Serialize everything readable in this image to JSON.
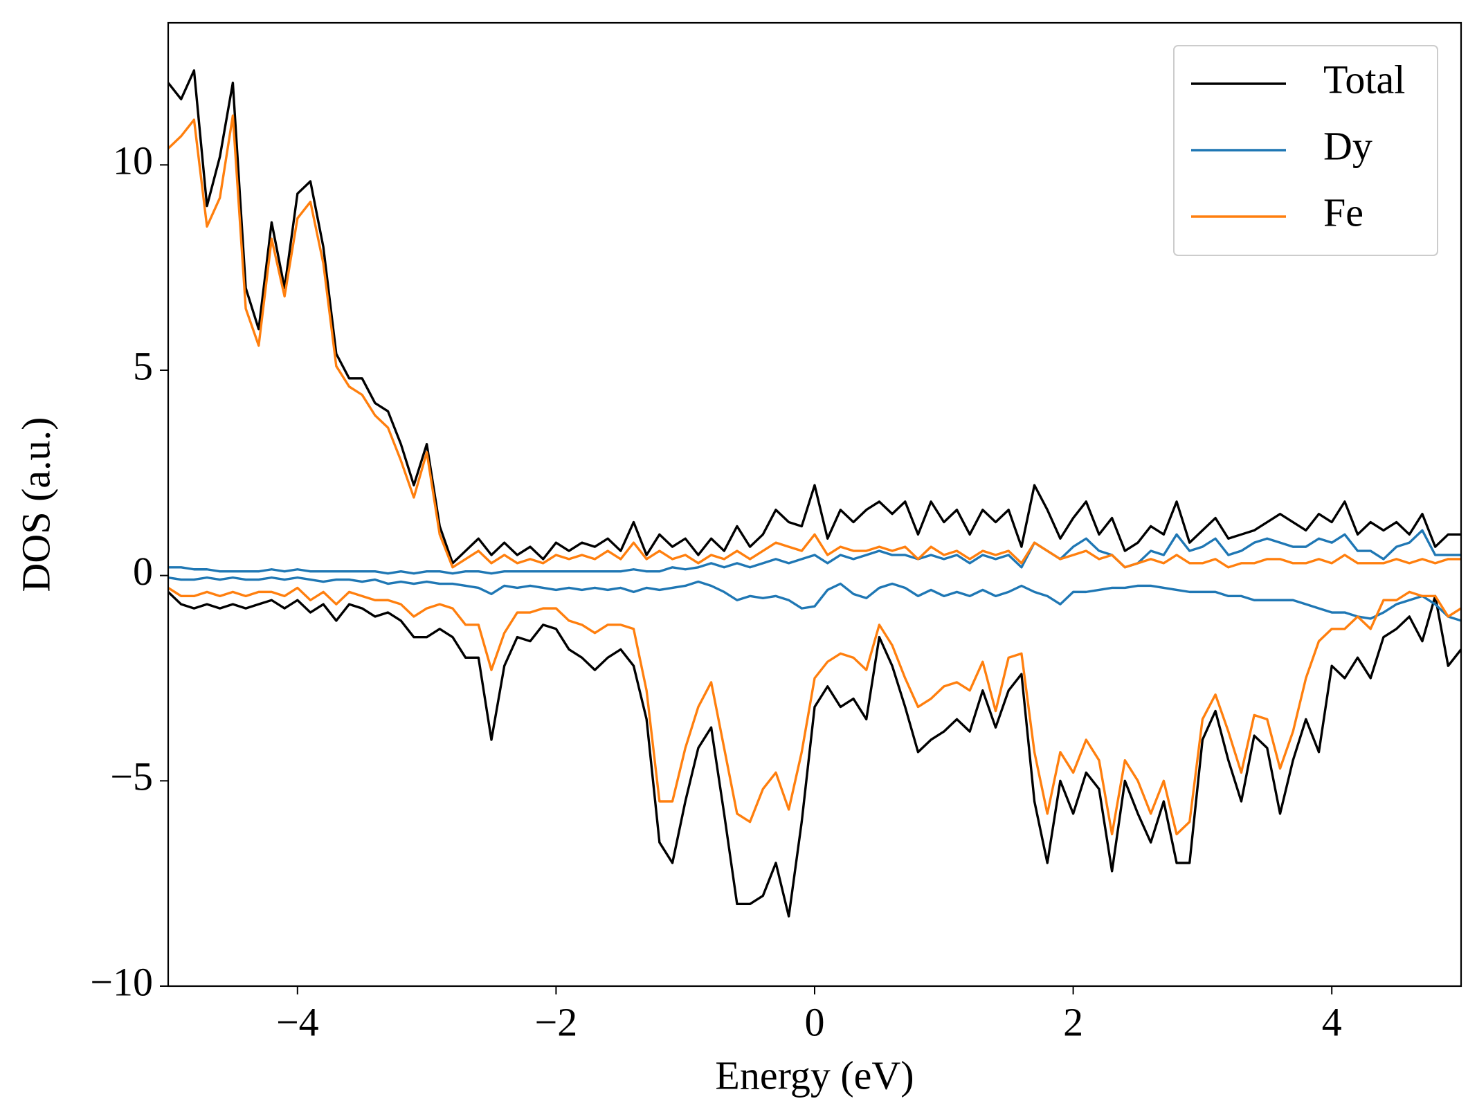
{
  "chart_data": {
    "type": "line",
    "xlabel": "Energy (eV)",
    "ylabel": "DOS (a.u.)",
    "xlim": [
      -5,
      5
    ],
    "ylim": [
      -10,
      13.46
    ],
    "xticks": [
      {
        "value": -4,
        "label": "−4"
      },
      {
        "value": -2,
        "label": "−2"
      },
      0,
      2,
      4
    ],
    "yticks": [
      {
        "value": -10,
        "label": "−10"
      },
      {
        "value": -5,
        "label": "−5"
      },
      0,
      5,
      10
    ],
    "legend": "upper right",
    "x": [
      -5.0,
      -4.9,
      -4.8,
      -4.7,
      -4.6,
      -4.5,
      -4.4,
      -4.3,
      -4.2,
      -4.1,
      -4.0,
      -3.9,
      -3.8,
      -3.7,
      -3.6,
      -3.5,
      -3.4,
      -3.3,
      -3.2,
      -3.1,
      -3.0,
      -2.9,
      -2.8,
      -2.7,
      -2.6,
      -2.5,
      -2.4,
      -2.3,
      -2.2,
      -2.1,
      -2.0,
      -1.9,
      -1.8,
      -1.7,
      -1.6,
      -1.5,
      -1.4,
      -1.3,
      -1.2,
      -1.1,
      -1.0,
      -0.9,
      -0.8,
      -0.7,
      -0.6,
      -0.5,
      -0.4,
      -0.3,
      -0.2,
      -0.1,
      0.0,
      0.1,
      0.2,
      0.3,
      0.4,
      0.5,
      0.6,
      0.7,
      0.8,
      0.9,
      1.0,
      1.1,
      1.2,
      1.3,
      1.4,
      1.5,
      1.6,
      1.7,
      1.8,
      1.9,
      2.0,
      2.1,
      2.2,
      2.3,
      2.4,
      2.5,
      2.6,
      2.7,
      2.8,
      2.9,
      3.0,
      3.1,
      3.2,
      3.3,
      3.4,
      3.5,
      3.6,
      3.7,
      3.8,
      3.9,
      4.0,
      4.1,
      4.2,
      4.3,
      4.4,
      4.5,
      4.6,
      4.7,
      4.8,
      4.9,
      5.0
    ],
    "series": [
      {
        "name": "Total",
        "color": "#000000",
        "values": [
          12.0,
          11.6,
          12.3,
          9.0,
          10.2,
          12.0,
          7.0,
          6.0,
          8.6,
          7.0,
          9.3,
          9.6,
          8.0,
          5.4,
          4.8,
          4.8,
          4.2,
          4.0,
          3.2,
          2.2,
          3.2,
          1.2,
          0.3,
          0.6,
          0.9,
          0.5,
          0.8,
          0.5,
          0.7,
          0.4,
          0.8,
          0.6,
          0.8,
          0.7,
          0.9,
          0.6,
          1.3,
          0.5,
          1.0,
          0.7,
          0.9,
          0.5,
          0.9,
          0.6,
          1.2,
          0.7,
          1.0,
          1.6,
          1.3,
          1.2,
          2.2,
          0.9,
          1.6,
          1.3,
          1.6,
          1.8,
          1.5,
          1.8,
          1.0,
          1.8,
          1.3,
          1.6,
          1.0,
          1.6,
          1.3,
          1.6,
          0.7,
          2.2,
          1.6,
          0.9,
          1.4,
          1.8,
          1.0,
          1.4,
          0.6,
          0.8,
          1.2,
          1.0,
          1.8,
          0.8,
          1.1,
          1.4,
          0.9,
          1.0,
          1.1,
          1.3,
          1.5,
          1.3,
          1.1,
          1.5,
          1.3,
          1.8,
          1.0,
          1.3,
          1.1,
          1.3,
          1.0,
          1.5,
          0.7,
          1.0,
          1.0
        ],
        "values_down": [
          -0.4,
          -0.7,
          -0.8,
          -0.7,
          -0.8,
          -0.7,
          -0.8,
          -0.7,
          -0.6,
          -0.8,
          -0.6,
          -0.9,
          -0.7,
          -1.1,
          -0.7,
          -0.8,
          -1.0,
          -0.9,
          -1.1,
          -1.5,
          -1.5,
          -1.3,
          -1.5,
          -2.0,
          -2.0,
          -4.0,
          -2.2,
          -1.5,
          -1.6,
          -1.2,
          -1.3,
          -1.8,
          -2.0,
          -2.3,
          -2.0,
          -1.8,
          -2.2,
          -3.5,
          -6.5,
          -7.0,
          -5.5,
          -4.2,
          -3.7,
          -5.8,
          -8.0,
          -8.0,
          -7.8,
          -7.0,
          -8.3,
          -6.0,
          -3.2,
          -2.7,
          -3.2,
          -3.0,
          -3.5,
          -1.5,
          -2.2,
          -3.2,
          -4.3,
          -4.0,
          -3.8,
          -3.5,
          -3.8,
          -2.8,
          -3.7,
          -2.8,
          -2.4,
          -5.5,
          -7.0,
          -5.0,
          -5.8,
          -4.8,
          -5.2,
          -7.2,
          -5.0,
          -5.8,
          -6.5,
          -5.5,
          -7.0,
          -7.0,
          -4.0,
          -3.3,
          -4.5,
          -5.5,
          -3.9,
          -4.2,
          -5.8,
          -4.5,
          -3.5,
          -4.3,
          -2.2,
          -2.5,
          -2.0,
          -2.5,
          -1.5,
          -1.3,
          -1.0,
          -1.6,
          -0.5,
          -2.2,
          -1.8
        ]
      },
      {
        "name": "Dy",
        "color": "#1f77b4",
        "values": [
          0.2,
          0.2,
          0.15,
          0.15,
          0.1,
          0.1,
          0.1,
          0.1,
          0.15,
          0.1,
          0.15,
          0.1,
          0.1,
          0.1,
          0.1,
          0.1,
          0.1,
          0.05,
          0.1,
          0.05,
          0.1,
          0.1,
          0.05,
          0.1,
          0.1,
          0.05,
          0.1,
          0.1,
          0.1,
          0.1,
          0.1,
          0.1,
          0.1,
          0.1,
          0.1,
          0.1,
          0.15,
          0.1,
          0.1,
          0.2,
          0.15,
          0.2,
          0.3,
          0.2,
          0.3,
          0.2,
          0.3,
          0.4,
          0.3,
          0.4,
          0.5,
          0.3,
          0.5,
          0.4,
          0.5,
          0.6,
          0.5,
          0.5,
          0.4,
          0.5,
          0.4,
          0.5,
          0.3,
          0.5,
          0.4,
          0.5,
          0.2,
          0.8,
          0.6,
          0.4,
          0.7,
          0.9,
          0.6,
          0.5,
          0.2,
          0.3,
          0.6,
          0.5,
          1.0,
          0.6,
          0.7,
          0.9,
          0.5,
          0.6,
          0.8,
          0.9,
          0.8,
          0.7,
          0.7,
          0.9,
          0.8,
          1.0,
          0.6,
          0.6,
          0.4,
          0.7,
          0.8,
          1.1,
          0.5,
          0.5,
          0.5
        ],
        "values_down": [
          -0.05,
          -0.1,
          -0.1,
          -0.05,
          -0.1,
          -0.05,
          -0.1,
          -0.1,
          -0.05,
          -0.1,
          -0.05,
          -0.1,
          -0.15,
          -0.1,
          -0.1,
          -0.15,
          -0.1,
          -0.2,
          -0.15,
          -0.2,
          -0.15,
          -0.2,
          -0.2,
          -0.25,
          -0.3,
          -0.45,
          -0.25,
          -0.3,
          -0.25,
          -0.3,
          -0.35,
          -0.3,
          -0.35,
          -0.3,
          -0.35,
          -0.3,
          -0.4,
          -0.3,
          -0.35,
          -0.3,
          -0.25,
          -0.15,
          -0.25,
          -0.4,
          -0.6,
          -0.5,
          -0.55,
          -0.5,
          -0.6,
          -0.8,
          -0.75,
          -0.35,
          -0.2,
          -0.45,
          -0.55,
          -0.3,
          -0.2,
          -0.3,
          -0.5,
          -0.35,
          -0.5,
          -0.4,
          -0.5,
          -0.35,
          -0.5,
          -0.4,
          -0.25,
          -0.4,
          -0.5,
          -0.7,
          -0.4,
          -0.4,
          -0.35,
          -0.3,
          -0.3,
          -0.25,
          -0.25,
          -0.3,
          -0.35,
          -0.4,
          -0.4,
          -0.4,
          -0.5,
          -0.5,
          -0.6,
          -0.6,
          -0.6,
          -0.6,
          -0.7,
          -0.8,
          -0.9,
          -0.9,
          -1.0,
          -1.05,
          -0.9,
          -0.7,
          -0.6,
          -0.5,
          -0.7,
          -1.0,
          -1.1
        ]
      },
      {
        "name": "Fe",
        "color": "#ff7f0e",
        "values": [
          10.4,
          10.7,
          11.1,
          8.5,
          9.2,
          11.2,
          6.5,
          5.6,
          8.2,
          6.8,
          8.7,
          9.1,
          7.6,
          5.1,
          4.6,
          4.4,
          3.9,
          3.6,
          2.8,
          1.9,
          3.0,
          1.0,
          0.2,
          0.4,
          0.6,
          0.3,
          0.5,
          0.3,
          0.4,
          0.3,
          0.5,
          0.4,
          0.5,
          0.4,
          0.6,
          0.4,
          0.8,
          0.4,
          0.6,
          0.4,
          0.5,
          0.3,
          0.5,
          0.4,
          0.6,
          0.4,
          0.6,
          0.8,
          0.7,
          0.6,
          1.0,
          0.5,
          0.7,
          0.6,
          0.6,
          0.7,
          0.6,
          0.7,
          0.4,
          0.7,
          0.5,
          0.6,
          0.4,
          0.6,
          0.5,
          0.6,
          0.3,
          0.8,
          0.6,
          0.4,
          0.5,
          0.6,
          0.4,
          0.5,
          0.2,
          0.3,
          0.4,
          0.3,
          0.5,
          0.3,
          0.3,
          0.4,
          0.2,
          0.3,
          0.3,
          0.4,
          0.4,
          0.3,
          0.3,
          0.4,
          0.3,
          0.5,
          0.3,
          0.3,
          0.3,
          0.4,
          0.3,
          0.4,
          0.3,
          0.4,
          0.4
        ],
        "values_down": [
          -0.3,
          -0.5,
          -0.5,
          -0.4,
          -0.5,
          -0.4,
          -0.5,
          -0.4,
          -0.4,
          -0.5,
          -0.3,
          -0.6,
          -0.4,
          -0.7,
          -0.4,
          -0.5,
          -0.6,
          -0.6,
          -0.7,
          -1.0,
          -0.8,
          -0.7,
          -0.8,
          -1.2,
          -1.2,
          -2.3,
          -1.4,
          -0.9,
          -0.9,
          -0.8,
          -0.8,
          -1.1,
          -1.2,
          -1.4,
          -1.2,
          -1.2,
          -1.3,
          -2.8,
          -5.5,
          -5.5,
          -4.2,
          -3.2,
          -2.6,
          -4.2,
          -5.8,
          -6.0,
          -5.2,
          -4.8,
          -5.7,
          -4.3,
          -2.5,
          -2.1,
          -1.9,
          -2.0,
          -2.3,
          -1.2,
          -1.7,
          -2.5,
          -3.2,
          -3.0,
          -2.7,
          -2.6,
          -2.8,
          -2.1,
          -3.3,
          -2.0,
          -1.9,
          -4.3,
          -5.8,
          -4.3,
          -4.8,
          -4.0,
          -4.5,
          -6.3,
          -4.5,
          -5.0,
          -5.8,
          -5.0,
          -6.3,
          -6.0,
          -3.5,
          -2.9,
          -3.8,
          -4.8,
          -3.4,
          -3.5,
          -4.7,
          -3.8,
          -2.5,
          -1.6,
          -1.3,
          -1.3,
          -1.0,
          -1.3,
          -0.6,
          -0.6,
          -0.4,
          -0.5,
          -0.5,
          -1.0,
          -0.8
        ]
      }
    ]
  }
}
